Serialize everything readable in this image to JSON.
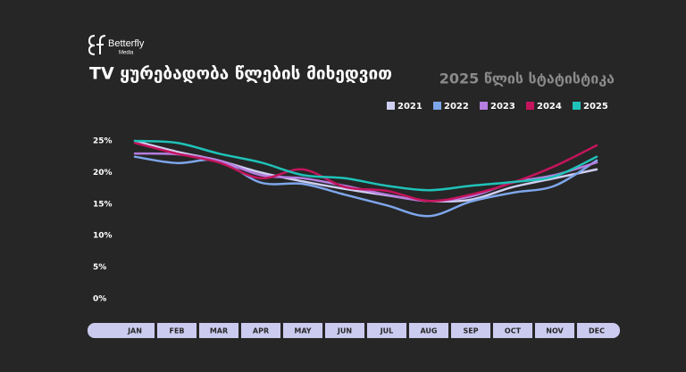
{
  "logo": {
    "name": "Betterfly",
    "tagline": "Media"
  },
  "chart_data": {
    "type": "line",
    "title": "TV ყურებადობა წლების მიხედვით",
    "subtitle": "2025 წლის სტატისტიკა",
    "categories": [
      "JAN",
      "FEB",
      "MAR",
      "APR",
      "MAY",
      "JUN",
      "JUL",
      "AUG",
      "SEP",
      "OCT",
      "NOV",
      "DEC"
    ],
    "series": [
      {
        "name": "2021",
        "color": "#cfcff2",
        "values": [
          25,
          23.3,
          21.9,
          20,
          18.6,
          17.4,
          16.4,
          15.5,
          15.7,
          17.7,
          19.1,
          20.5
        ]
      },
      {
        "name": "2022",
        "color": "#7ea6ea",
        "values": [
          22.5,
          21.5,
          21.9,
          18.4,
          18.2,
          16.5,
          14.8,
          13.1,
          15.4,
          16.8,
          17.9,
          21.9
        ]
      },
      {
        "name": "2023",
        "color": "#b67ee0",
        "values": [
          23,
          22.9,
          21.9,
          19.6,
          19.1,
          17.9,
          16.5,
          15.5,
          16.2,
          18.4,
          19.6,
          21.6
        ]
      },
      {
        "name": "2024",
        "color": "#c4145c",
        "values": [
          24.7,
          23,
          21.6,
          19.1,
          20.5,
          17.7,
          17.1,
          15.5,
          16.5,
          18.4,
          21,
          24.3
        ]
      },
      {
        "name": "2025",
        "color": "#1fc2b8",
        "values": [
          25,
          24.7,
          23,
          21.6,
          19.6,
          19.1,
          17.9,
          17.2,
          17.9,
          18.5,
          19.4,
          22.5
        ]
      }
    ],
    "ylim": [
      0,
      25
    ],
    "yticks": [
      {
        "value": 0,
        "label": "0%"
      },
      {
        "value": 5,
        "label": "5%"
      },
      {
        "value": 10,
        "label": "10%"
      },
      {
        "value": 15,
        "label": "15%"
      },
      {
        "value": 20,
        "label": "20%"
      },
      {
        "value": 25,
        "label": "25%"
      }
    ],
    "grid": false
  }
}
